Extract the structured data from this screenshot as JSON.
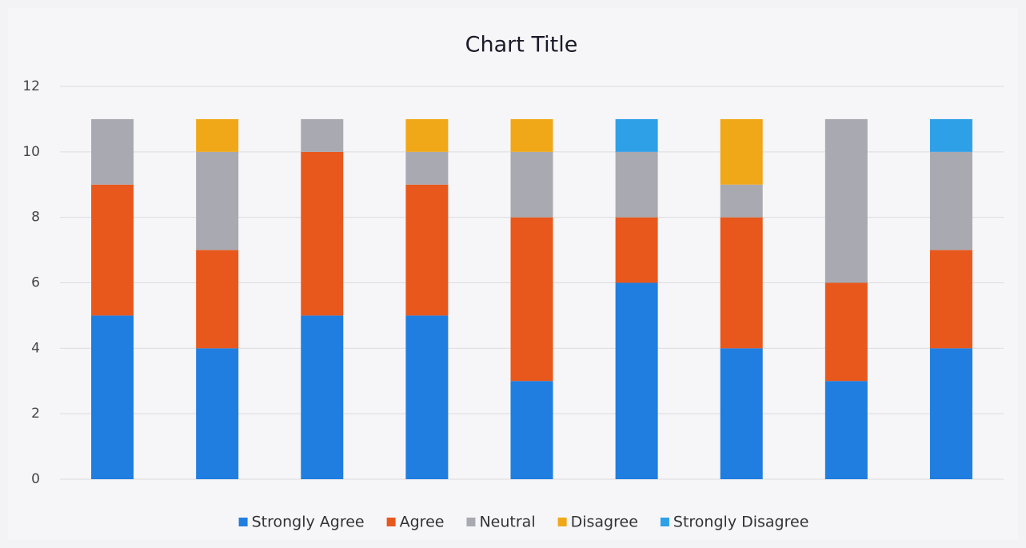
{
  "chart_data": {
    "type": "stacked_bar",
    "title": "Chart Title",
    "categories": [
      null,
      null,
      null,
      null,
      null,
      null,
      null,
      null,
      null
    ],
    "series": [
      {
        "name": "Strongly Agree",
        "color": "#1f7ee0",
        "values": [
          5,
          4,
          5,
          5,
          3,
          6,
          4,
          3,
          4
        ]
      },
      {
        "name": "Agree",
        "color": "#e8581c",
        "values": [
          4,
          3,
          5,
          4,
          5,
          2,
          4,
          3,
          3
        ]
      },
      {
        "name": "Neutral",
        "color": "#a9a9b1",
        "values": [
          2,
          3,
          1,
          1,
          2,
          2,
          1,
          5,
          3
        ]
      },
      {
        "name": "Disagree",
        "color": "#f0a818",
        "values": [
          0,
          1,
          0,
          1,
          1,
          0,
          2,
          0,
          0
        ]
      },
      {
        "name": "Strongly Disagree",
        "color": "#2ea0e8",
        "values": [
          0,
          0,
          0,
          0,
          0,
          1,
          0,
          0,
          1
        ]
      }
    ],
    "ylim": [
      0,
      12
    ],
    "yticks": [
      0,
      2,
      4,
      6,
      8,
      10,
      12
    ],
    "grid": true,
    "legend": "bottom"
  }
}
